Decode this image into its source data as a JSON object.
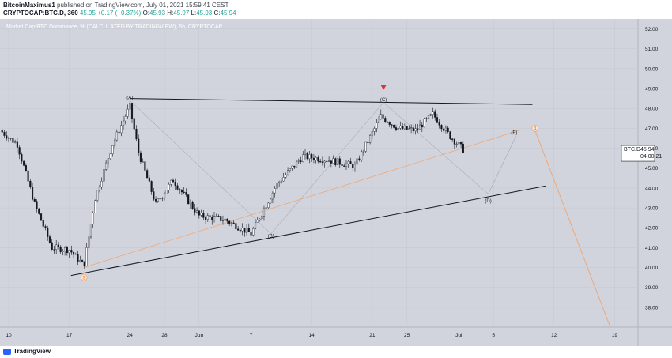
{
  "header": {
    "author": "BitcoinMaximus1",
    "published": "published on TradingView.com, July 01, 2021 15:59:41 CEST",
    "symbol": "CRYPTOCAP:BTC.D, 360",
    "price": "45.95",
    "change": "+0.17 (+0.37%)",
    "ohlc": [
      {
        "k": "O:",
        "v": "45.93"
      },
      {
        "k": "H:",
        "v": "45.97"
      },
      {
        "k": "L:",
        "v": "45.93"
      },
      {
        "k": "C:",
        "v": "45.94"
      }
    ]
  },
  "footer": {
    "logo": "TradingView"
  },
  "colors": {
    "background": "#d1d4dc",
    "candle_up": "#ffffff",
    "candle_down": "#131722",
    "wave_line": "#f0a877",
    "grid": "#c4c7cf"
  },
  "chart_data": {
    "type": "candlestick",
    "title": "Market Cap BTC Dominance, % (CALCULATED BY TRADINGVIEW), 6h, CRYPTOCAP",
    "ylim": [
      37,
      52.5
    ],
    "y_ticks": [
      "38.00",
      "39.00",
      "40.00",
      "41.00",
      "42.00",
      "43.00",
      "44.00",
      "45.00",
      "46.00",
      "47.00",
      "48.00",
      "49.00",
      "50.00",
      "51.00",
      "52.00"
    ],
    "x_ticks": [
      {
        "label": "10",
        "day": 0
      },
      {
        "label": "17",
        "day": 7
      },
      {
        "label": "24",
        "day": 14
      },
      {
        "label": "28",
        "day": 18
      },
      {
        "label": "Jun",
        "day": 22
      },
      {
        "label": "7",
        "day": 28
      },
      {
        "label": "14",
        "day": 35
      },
      {
        "label": "21",
        "day": 42
      },
      {
        "label": "25",
        "day": 46
      },
      {
        "label": "Jul",
        "day": 52
      },
      {
        "label": "5",
        "day": 56
      },
      {
        "label": "12",
        "day": 63
      },
      {
        "label": "19",
        "day": 70
      }
    ],
    "xlim": [
      -1,
      72.7
    ],
    "price_label": {
      "symbol": "BTC.D",
      "value": "45.94",
      "countdown": "04:00:21",
      "y": 45.94
    },
    "key_closes": [
      {
        "day": -1,
        "value": 46.9
      },
      {
        "day": 1,
        "value": 46.2
      },
      {
        "day": 3,
        "value": 43.2
      },
      {
        "day": 5,
        "value": 41.0
      },
      {
        "day": 7,
        "value": 40.9
      },
      {
        "day": 8.7,
        "value": 40.1
      },
      {
        "day": 10,
        "value": 43.5
      },
      {
        "day": 12,
        "value": 46.2
      },
      {
        "day": 14,
        "value": 48.1
      },
      {
        "day": 15,
        "value": 45.8
      },
      {
        "day": 17,
        "value": 43.2
      },
      {
        "day": 19,
        "value": 44.4
      },
      {
        "day": 22,
        "value": 42.6
      },
      {
        "day": 25,
        "value": 42.4
      },
      {
        "day": 28,
        "value": 41.7
      },
      {
        "day": 31,
        "value": 44.2
      },
      {
        "day": 34,
        "value": 45.6
      },
      {
        "day": 37,
        "value": 45.4
      },
      {
        "day": 40,
        "value": 45.1
      },
      {
        "day": 43,
        "value": 47.6
      },
      {
        "day": 45,
        "value": 47.0
      },
      {
        "day": 47,
        "value": 46.9
      },
      {
        "day": 49,
        "value": 47.7
      },
      {
        "day": 51,
        "value": 46.6
      },
      {
        "day": 52.5,
        "value": 45.94
      }
    ],
    "trendlines": [
      {
        "name": "upper",
        "points": [
          [
            14,
            48.5
          ],
          [
            60.5,
            48.2
          ]
        ],
        "color": "#131722"
      },
      {
        "name": "lower",
        "points": [
          [
            7.2,
            39.6
          ],
          [
            62,
            44.1
          ]
        ],
        "color": "#131722"
      },
      {
        "name": "orange-channel",
        "points": [
          [
            8.7,
            40.0
          ],
          [
            59,
            46.9
          ]
        ],
        "color": "#f0a877"
      }
    ],
    "waves": [
      {
        "label": "(A)",
        "day": 14,
        "value": 48.55
      },
      {
        "label": "(B)",
        "day": 30.3,
        "value": 41.6
      },
      {
        "label": "(C)",
        "day": 43.3,
        "value": 48.45
      },
      {
        "label": "(D)",
        "day": 55.4,
        "value": 43.35
      },
      {
        "label": "(E)",
        "day": 58.4,
        "value": 46.8
      }
    ],
    "wave_path": [
      [
        14,
        48.4
      ],
      [
        30.3,
        41.7
      ],
      [
        43.3,
        48.3
      ],
      [
        55.4,
        43.7
      ],
      [
        58.6,
        46.6
      ]
    ],
    "count_labels": [
      {
        "label": "3",
        "day": 8.7,
        "value": 39.5
      },
      {
        "label": "4",
        "day": 60.8,
        "value": 47.0
      }
    ],
    "projection": [
      [
        60.8,
        46.9
      ],
      [
        69.5,
        37.0
      ]
    ],
    "sell_marker": {
      "day": 43.3,
      "value": 49.05
    }
  }
}
